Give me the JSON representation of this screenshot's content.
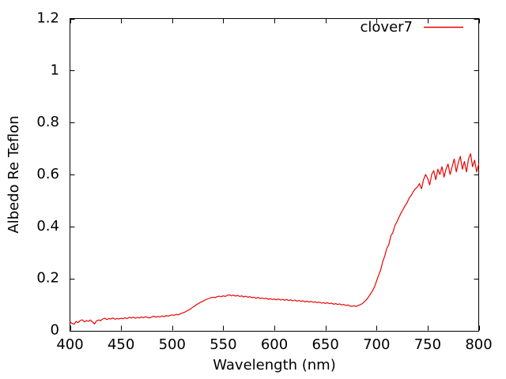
{
  "figure": {
    "background": "#ffffff",
    "border_color": "#000000",
    "text_color": "#000000"
  },
  "chart_data": {
    "type": "line",
    "title": "",
    "xlabel": "Wavelength (nm)",
    "ylabel": "Albedo Re Teflon",
    "xlim": [
      400,
      800
    ],
    "ylim": [
      0,
      1.2
    ],
    "grid": false,
    "tick_style": "inward-mirrored",
    "legend_position": "top-right-inside",
    "x_ticks": [
      400,
      450,
      500,
      550,
      600,
      650,
      700,
      750,
      800
    ],
    "x_tick_labels": [
      "400",
      "450",
      "500",
      "550",
      "600",
      "650",
      "700",
      "750",
      "800"
    ],
    "y_ticks": [
      0,
      0.2,
      0.4,
      0.6,
      0.8,
      1,
      1.2
    ],
    "y_tick_labels": [
      "0",
      "0.2",
      "0.4",
      "0.6",
      "0.8",
      "1",
      "1.2"
    ],
    "series": [
      {
        "name": "clover7",
        "color": "#ee0000",
        "x_start": 400,
        "x_step": 2,
        "values": [
          0.033,
          0.027,
          0.024,
          0.035,
          0.03,
          0.038,
          0.041,
          0.033,
          0.038,
          0.035,
          0.04,
          0.033,
          0.025,
          0.037,
          0.04,
          0.038,
          0.044,
          0.047,
          0.042,
          0.046,
          0.044,
          0.048,
          0.043,
          0.046,
          0.044,
          0.047,
          0.045,
          0.049,
          0.046,
          0.05,
          0.048,
          0.051,
          0.047,
          0.05,
          0.048,
          0.052,
          0.049,
          0.053,
          0.05,
          0.048,
          0.052,
          0.055,
          0.051,
          0.054,
          0.052,
          0.056,
          0.053,
          0.057,
          0.055,
          0.058,
          0.06,
          0.058,
          0.062,
          0.06,
          0.064,
          0.067,
          0.07,
          0.074,
          0.078,
          0.083,
          0.089,
          0.094,
          0.1,
          0.104,
          0.109,
          0.112,
          0.117,
          0.12,
          0.123,
          0.126,
          0.128,
          0.126,
          0.13,
          0.132,
          0.13,
          0.133,
          0.131,
          0.135,
          0.137,
          0.133,
          0.136,
          0.132,
          0.135,
          0.131,
          0.133,
          0.129,
          0.132,
          0.128,
          0.13,
          0.126,
          0.128,
          0.124,
          0.127,
          0.123,
          0.125,
          0.122,
          0.124,
          0.12,
          0.122,
          0.119,
          0.121,
          0.118,
          0.121,
          0.117,
          0.12,
          0.116,
          0.119,
          0.115,
          0.118,
          0.114,
          0.117,
          0.113,
          0.115,
          0.112,
          0.114,
          0.11,
          0.113,
          0.109,
          0.112,
          0.108,
          0.11,
          0.107,
          0.109,
          0.105,
          0.107,
          0.104,
          0.107,
          0.103,
          0.105,
          0.101,
          0.103,
          0.1,
          0.102,
          0.098,
          0.1,
          0.096,
          0.098,
          0.094,
          0.093,
          0.095,
          0.092,
          0.096,
          0.099,
          0.103,
          0.11,
          0.118,
          0.128,
          0.14,
          0.152,
          0.168,
          0.19,
          0.212,
          0.232,
          0.264,
          0.286,
          0.316,
          0.33,
          0.364,
          0.376,
          0.404,
          0.418,
          0.436,
          0.452,
          0.466,
          0.48,
          0.492,
          0.51,
          0.52,
          0.535,
          0.545,
          0.552,
          0.565,
          0.545,
          0.58,
          0.6,
          0.585,
          0.56,
          0.6,
          0.615,
          0.58,
          0.62,
          0.6,
          0.63,
          0.59,
          0.62,
          0.64,
          0.6,
          0.63,
          0.66,
          0.61,
          0.645,
          0.67,
          0.62,
          0.65,
          0.61,
          0.66,
          0.68,
          0.63,
          0.655,
          0.61,
          0.64
        ]
      }
    ]
  }
}
